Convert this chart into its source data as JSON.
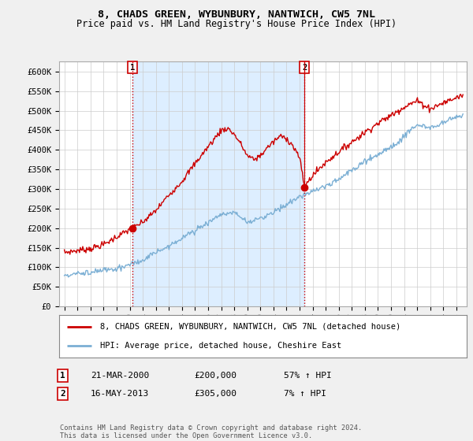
{
  "title": "8, CHADS GREEN, WYBUNBURY, NANTWICH, CW5 7NL",
  "subtitle": "Price paid vs. HM Land Registry's House Price Index (HPI)",
  "ylim": [
    0,
    625000
  ],
  "yticks": [
    0,
    50000,
    100000,
    150000,
    200000,
    250000,
    300000,
    350000,
    400000,
    450000,
    500000,
    550000,
    600000
  ],
  "ytick_labels": [
    "£0",
    "£50K",
    "£100K",
    "£150K",
    "£200K",
    "£250K",
    "£300K",
    "£350K",
    "£400K",
    "£450K",
    "£500K",
    "£550K",
    "£600K"
  ],
  "background_color": "#f0f0f0",
  "plot_bg_color": "#ffffff",
  "grid_color": "#cccccc",
  "hpi_color": "#7bafd4",
  "price_color": "#cc0000",
  "shade_color": "#ddeeff",
  "sale1_date": 2000.22,
  "sale1_price": 200000,
  "sale2_date": 2013.37,
  "sale2_price": 305000,
  "xlim_left": 1994.6,
  "xlim_right": 2025.8,
  "legend_label_price": "8, CHADS GREEN, WYBUNBURY, NANTWICH, CW5 7NL (detached house)",
  "legend_label_hpi": "HPI: Average price, detached house, Cheshire East",
  "annotation1": [
    "1",
    "21-MAR-2000",
    "£200,000",
    "57% ↑ HPI"
  ],
  "annotation2": [
    "2",
    "16-MAY-2013",
    "£305,000",
    "7% ↑ HPI"
  ],
  "footer": "Contains HM Land Registry data © Crown copyright and database right 2024.\nThis data is licensed under the Open Government Licence v3.0.",
  "title_fontsize": 9.5,
  "subtitle_fontsize": 8.5,
  "tick_fontsize": 7.5,
  "legend_fontsize": 7.5,
  "ann_fontsize": 8
}
